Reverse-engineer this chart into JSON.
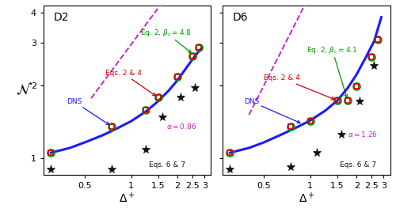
{
  "D2": {
    "label": "D2",
    "alpha": 0.86,
    "beta_c": 4.8,
    "curve_x": [
      0.3,
      0.4,
      0.5,
      0.65,
      0.8,
      1.0,
      1.25,
      1.5,
      1.75,
      2.0,
      2.3,
      2.6,
      2.9
    ],
    "curve_y": [
      1.05,
      1.1,
      1.16,
      1.24,
      1.32,
      1.42,
      1.56,
      1.72,
      1.9,
      2.1,
      2.38,
      2.65,
      2.88
    ],
    "eq24_x": [
      0.3,
      0.75,
      1.25,
      1.5,
      2.0,
      2.5,
      2.75
    ],
    "eq24_y": [
      1.05,
      1.35,
      1.58,
      1.78,
      2.18,
      2.65,
      2.88
    ],
    "eq2_x": [
      0.3,
      0.75,
      1.25,
      1.5,
      2.0,
      2.5,
      2.75
    ],
    "eq2_y": [
      1.05,
      1.35,
      1.58,
      1.78,
      2.18,
      2.65,
      2.88
    ],
    "eq67_x": [
      0.3,
      0.75,
      1.25,
      1.6,
      2.1,
      2.6
    ],
    "eq67_y": [
      0.9,
      0.9,
      1.08,
      1.48,
      1.78,
      1.95
    ],
    "fit_base_x": 0.3,
    "fit_base_y": 1.05,
    "fit_x_start": 0.55,
    "fit_x_end": 3.0
  },
  "D6": {
    "label": "D6",
    "alpha": 1.26,
    "beta_c": 4.1,
    "curve_x": [
      0.3,
      0.4,
      0.5,
      0.65,
      0.8,
      1.0,
      1.25,
      1.5,
      1.75,
      2.0,
      2.3,
      2.6,
      2.9
    ],
    "curve_y": [
      1.05,
      1.1,
      1.16,
      1.25,
      1.33,
      1.43,
      1.57,
      1.73,
      1.95,
      2.22,
      2.62,
      3.05,
      3.85
    ],
    "eq24_x": [
      0.3,
      0.75,
      1.0,
      1.5,
      1.75,
      2.0,
      2.5,
      2.75
    ],
    "eq24_y": [
      1.05,
      1.35,
      1.42,
      1.73,
      1.73,
      1.98,
      2.62,
      3.1
    ],
    "eq2_x": [
      0.3,
      0.75,
      1.0,
      1.5,
      1.75,
      2.0,
      2.5,
      2.75
    ],
    "eq2_y": [
      1.05,
      1.35,
      1.42,
      1.73,
      1.73,
      1.98,
      2.62,
      3.1
    ],
    "eq67_x": [
      0.3,
      0.75,
      1.1,
      1.6,
      2.1,
      2.6
    ],
    "eq67_y": [
      0.9,
      0.92,
      1.05,
      1.25,
      1.72,
      2.42
    ],
    "fit_base_x": 0.3,
    "fit_base_y": 1.05,
    "fit_x_start": 0.4,
    "fit_x_end": 3.0
  },
  "colors": {
    "dns_curve": "#1a1aff",
    "eq24": "#cc0000",
    "eq2": "#009900",
    "eq67": "#111111",
    "fit": "#cc22cc"
  },
  "xlim": [
    0.27,
    3.3
  ],
  "ylim": [
    0.85,
    4.3
  ],
  "xticks": [
    0.5,
    1.0,
    1.5,
    2.0,
    2.5,
    3.0
  ],
  "yticks": [
    1,
    2,
    3,
    4
  ]
}
